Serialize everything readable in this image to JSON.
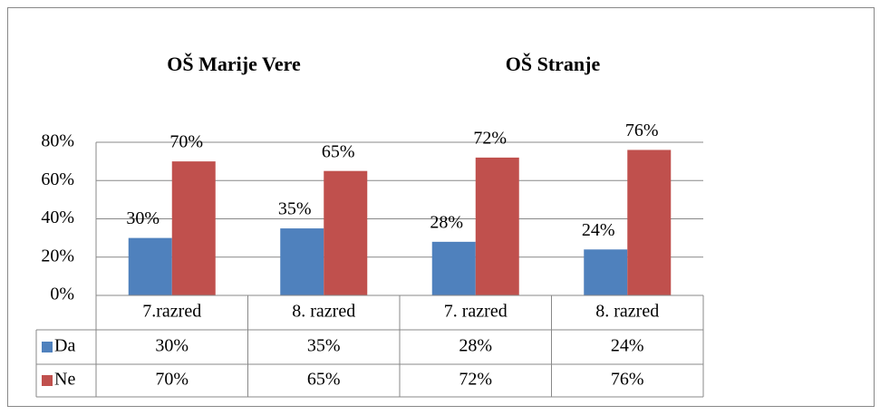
{
  "chart_data": {
    "type": "bar",
    "annotations": [
      "OŠ Marije Vere",
      "OŠ Stranje"
    ],
    "categories": [
      "7.razred",
      "8. razred",
      "7. razred",
      "8. razred"
    ],
    "series": [
      {
        "name": "Da",
        "color": "#4f81bd",
        "values": [
          30,
          35,
          28,
          24
        ],
        "value_labels": [
          "30%",
          "35%",
          "28%",
          "24%"
        ]
      },
      {
        "name": "Ne",
        "color": "#c0504d",
        "values": [
          70,
          65,
          72,
          76
        ],
        "value_labels": [
          "70%",
          "65%",
          "72%",
          "76%"
        ]
      }
    ],
    "ylim": [
      0,
      80
    ],
    "yticks": [
      {
        "value": 0,
        "label": "0%"
      },
      {
        "value": 20,
        "label": "20%"
      },
      {
        "value": 40,
        "label": "40%"
      },
      {
        "value": 60,
        "label": "60%"
      },
      {
        "value": 80,
        "label": "80%"
      }
    ],
    "grid": true
  }
}
